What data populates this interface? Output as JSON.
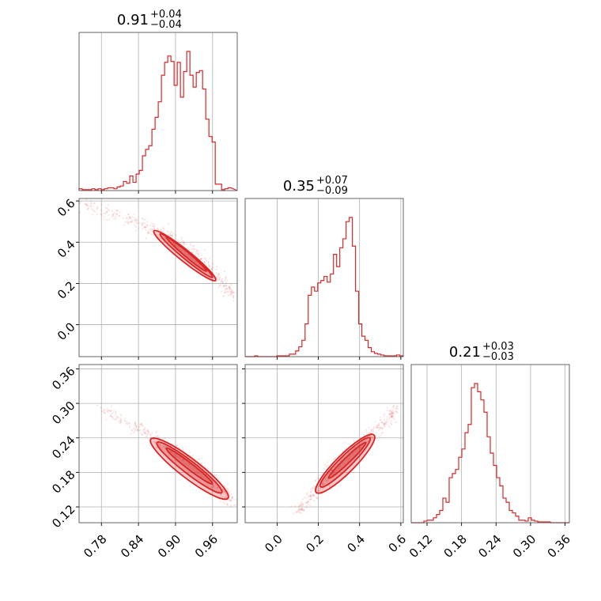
{
  "chart_data": {
    "type": "corner",
    "color": "#d62728",
    "parameters": [
      {
        "title": "0.91",
        "title_plus": "+0.04",
        "title_minus": "−0.04",
        "range": [
          0.7438,
          1.0
        ],
        "ticks": [
          0.78,
          0.84,
          0.9,
          0.96
        ],
        "tick_labels": [
          "0.78",
          "0.84",
          "0.90",
          "0.96"
        ],
        "hist_start": 0.7438,
        "hist_step": 0.00513,
        "hist_counts": [
          2,
          1,
          1,
          1,
          2,
          1,
          2,
          1,
          2,
          3,
          3,
          2,
          4,
          5,
          10,
          8,
          16,
          9,
          18,
          22,
          38,
          45,
          49,
          67,
          80,
          97,
          126,
          140,
          147,
          141,
          115,
          140,
          102,
          130,
          152,
          126,
          113,
          129,
          131,
          111,
          78,
          59,
          53,
          7,
          7,
          1,
          2,
          3
        ]
      },
      {
        "title": "0.35",
        "title_plus": "+0.07",
        "title_minus": "−0.09",
        "range": [
          -0.155,
          0.612
        ],
        "ticks": [
          0.0,
          0.2,
          0.4,
          0.6
        ],
        "tick_labels": [
          "0.0",
          "0.2",
          "0.4",
          "0.6"
        ],
        "hist_start": -0.155,
        "hist_step": 0.0153,
        "hist_counts": [
          0,
          0,
          0,
          1,
          0,
          0,
          0,
          0,
          0,
          0,
          1,
          1,
          1,
          1,
          3,
          3,
          7,
          12,
          20,
          40,
          75,
          85,
          80,
          90,
          93,
          98,
          91,
          101,
          125,
          110,
          133,
          144,
          165,
          170,
          135,
          80,
          40,
          25,
          20,
          11,
          6,
          4,
          3,
          2,
          1,
          1,
          1,
          1,
          2,
          1
        ]
      },
      {
        "title": "0.21",
        "title_plus": "+0.03",
        "title_minus": "−0.03",
        "range": [
          0.0925,
          0.3675
        ],
        "ticks": [
          0.12,
          0.18,
          0.24,
          0.3,
          0.36
        ],
        "tick_labels": [
          "0.12",
          "0.18",
          "0.24",
          "0.30",
          "0.36"
        ],
        "hist_start": 0.0925,
        "hist_step": 0.0055,
        "hist_counts": [
          0,
          0,
          0,
          0,
          2,
          3,
          3,
          6,
          10,
          15,
          30,
          25,
          55,
          60,
          65,
          80,
          90,
          110,
          120,
          165,
          170,
          160,
          150,
          135,
          105,
          85,
          70,
          55,
          45,
          30,
          25,
          15,
          12,
          8,
          3,
          3,
          2,
          6,
          3,
          2,
          1,
          1,
          1,
          1,
          0,
          0,
          0,
          0,
          0,
          0
        ]
      }
    ],
    "pairs": {
      "1_0": {
        "ridge": [
          [
            0.75,
            0.585
          ],
          [
            0.8,
            0.54
          ],
          [
            0.85,
            0.48
          ],
          [
            0.88,
            0.44
          ],
          [
            0.91,
            0.39
          ],
          [
            0.94,
            0.32
          ],
          [
            0.97,
            0.22
          ],
          [
            0.995,
            0.14
          ]
        ],
        "contours": [
          {
            "x0": 0.865,
            "y0": 0.455,
            "x1": 0.965,
            "y1": 0.215,
            "w": 0.055,
            "level": 3
          },
          {
            "x0": 0.875,
            "y0": 0.44,
            "x1": 0.96,
            "y1": 0.23,
            "w": 0.035,
            "level": 2
          },
          {
            "x0": 0.885,
            "y0": 0.425,
            "x1": 0.95,
            "y1": 0.26,
            "w": 0.018,
            "level": 1
          }
        ]
      },
      "2_0": {
        "ridge": [
          [
            0.78,
            0.29
          ],
          [
            0.83,
            0.262
          ],
          [
            0.87,
            0.235
          ],
          [
            0.91,
            0.21
          ],
          [
            0.94,
            0.19
          ],
          [
            0.97,
            0.155
          ],
          [
            0.99,
            0.13
          ]
        ],
        "contours": [
          {
            "x0": 0.86,
            "y0": 0.238,
            "x1": 0.985,
            "y1": 0.135,
            "w": 0.034,
            "level": 3
          },
          {
            "x0": 0.87,
            "y0": 0.232,
            "x1": 0.975,
            "y1": 0.145,
            "w": 0.022,
            "level": 2
          },
          {
            "x0": 0.885,
            "y0": 0.222,
            "x1": 0.96,
            "y1": 0.16,
            "w": 0.011,
            "level": 1
          }
        ]
      },
      "2_1": {
        "ridge": [
          [
            0.1,
            0.11
          ],
          [
            0.18,
            0.145
          ],
          [
            0.26,
            0.18
          ],
          [
            0.34,
            0.21
          ],
          [
            0.42,
            0.235
          ],
          [
            0.5,
            0.26
          ],
          [
            0.58,
            0.29
          ]
        ],
        "contours": [
          {
            "x0": 0.19,
            "y0": 0.145,
            "x1": 0.47,
            "y1": 0.245,
            "w": 0.032,
            "level": 3
          },
          {
            "x0": 0.21,
            "y0": 0.155,
            "x1": 0.45,
            "y1": 0.24,
            "w": 0.021,
            "level": 2
          },
          {
            "x0": 0.25,
            "y0": 0.17,
            "x1": 0.43,
            "y1": 0.232,
            "w": 0.01,
            "level": 1
          }
        ]
      }
    },
    "grid": true
  }
}
